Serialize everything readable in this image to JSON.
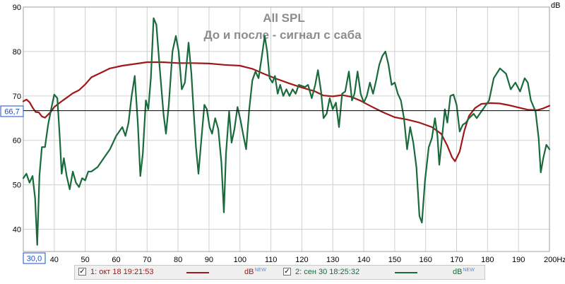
{
  "chart_data": {
    "type": "line",
    "title": "All SPL",
    "subtitle": "До и после - сигнал с саба",
    "ylabel": "dB",
    "xunit": "Hz",
    "xlim": [
      30,
      200
    ],
    "ylim": [
      35,
      90
    ],
    "x_ticks": [
      40,
      50,
      60,
      70,
      80,
      90,
      100,
      110,
      120,
      130,
      140,
      150,
      160,
      170,
      180,
      190,
      200
    ],
    "x_tick_labels": [
      "40",
      "50",
      "60",
      "70",
      "80",
      "90",
      "100",
      "110",
      "120",
      "130",
      "140",
      "150",
      "160",
      "170",
      "180",
      "190",
      "200Hz"
    ],
    "x_min_label": "30,0",
    "y_ticks": [
      40,
      50,
      60,
      70,
      80,
      90
    ],
    "reference_line": {
      "value": 66.7,
      "label": "66,7"
    },
    "grid": true,
    "colors": {
      "series1": "#a01818",
      "series2": "#196b3c",
      "reference": "#000000",
      "grid": "#d0d0d0"
    },
    "series": [
      {
        "name": "1: окт 18 19:21:53",
        "unit": "dB",
        "unit_tag": "NEW",
        "color": "#a01818",
        "points": [
          [
            30,
            68.8
          ],
          [
            31,
            69.2
          ],
          [
            32,
            68.6
          ],
          [
            33,
            67.4
          ],
          [
            34,
            66.4
          ],
          [
            35,
            66.3
          ],
          [
            36,
            65.4
          ],
          [
            37,
            65.1
          ],
          [
            38,
            65.8
          ],
          [
            39,
            66.5
          ],
          [
            40,
            67.5
          ],
          [
            42,
            68.6
          ],
          [
            44,
            69.6
          ],
          [
            46,
            70.6
          ],
          [
            48,
            71.3
          ],
          [
            50,
            72.6
          ],
          [
            52,
            74.2
          ],
          [
            55,
            75.2
          ],
          [
            58,
            76.2
          ],
          [
            62,
            76.8
          ],
          [
            66,
            77.2
          ],
          [
            70,
            77.6
          ],
          [
            75,
            77.6
          ],
          [
            80,
            77.4
          ],
          [
            85,
            77.4
          ],
          [
            90,
            77.3
          ],
          [
            95,
            77.0
          ],
          [
            100,
            76.8
          ],
          [
            104,
            76.1
          ],
          [
            108,
            74.9
          ],
          [
            112,
            73.8
          ],
          [
            116,
            72.8
          ],
          [
            120,
            71.9
          ],
          [
            124,
            71.1
          ],
          [
            127,
            70.1
          ],
          [
            130,
            69.9
          ],
          [
            133,
            70.2
          ],
          [
            136,
            69.8
          ],
          [
            139,
            68.9
          ],
          [
            142,
            67.8
          ],
          [
            146,
            66.4
          ],
          [
            150,
            65.2
          ],
          [
            154,
            64.7
          ],
          [
            158,
            64.0
          ],
          [
            162,
            63.0
          ],
          [
            165,
            61.5
          ],
          [
            167,
            58.8
          ],
          [
            168.5,
            56.2
          ],
          [
            169.5,
            55.3
          ],
          [
            171,
            57.5
          ],
          [
            172.5,
            62.2
          ],
          [
            174,
            65.5
          ],
          [
            176,
            67.3
          ],
          [
            178,
            68.2
          ],
          [
            181,
            68.4
          ],
          [
            184,
            68.3
          ],
          [
            187,
            67.9
          ],
          [
            190,
            67.4
          ],
          [
            193,
            66.9
          ],
          [
            196,
            66.8
          ],
          [
            198,
            67.2
          ],
          [
            200,
            67.8
          ]
        ]
      },
      {
        "name": "2: сен 30 18:25:32",
        "unit": "dB",
        "unit_tag": "NEW",
        "color": "#196b3c",
        "points": [
          [
            30,
            51.5
          ],
          [
            31,
            52.5
          ],
          [
            32,
            50.5
          ],
          [
            33,
            52
          ],
          [
            33.8,
            47
          ],
          [
            34.5,
            36.5
          ],
          [
            35.2,
            52
          ],
          [
            36,
            58.5
          ],
          [
            37,
            58.5
          ],
          [
            38,
            63.5
          ],
          [
            39,
            67
          ],
          [
            40,
            70.3
          ],
          [
            41,
            69.5
          ],
          [
            41.8,
            60.5
          ],
          [
            42.4,
            52.5
          ],
          [
            43.1,
            56
          ],
          [
            44,
            52
          ],
          [
            45,
            49
          ],
          [
            46,
            53
          ],
          [
            47,
            50.5
          ],
          [
            48,
            49.5
          ],
          [
            49,
            51.5
          ],
          [
            50,
            51
          ],
          [
            51,
            53
          ],
          [
            52,
            53
          ],
          [
            54,
            54
          ],
          [
            56,
            56
          ],
          [
            58,
            58
          ],
          [
            60,
            61
          ],
          [
            62,
            63
          ],
          [
            63,
            61
          ],
          [
            64,
            64
          ],
          [
            65,
            70
          ],
          [
            66,
            74.5
          ],
          [
            67,
            64
          ],
          [
            67.8,
            52
          ],
          [
            68.6,
            57
          ],
          [
            69.6,
            69
          ],
          [
            70.4,
            67
          ],
          [
            71.2,
            74
          ],
          [
            72.1,
            87.5
          ],
          [
            73,
            86
          ],
          [
            74,
            77
          ],
          [
            75.3,
            66
          ],
          [
            76.1,
            61.5
          ],
          [
            77,
            68
          ],
          [
            78.2,
            80
          ],
          [
            79.3,
            83.5
          ],
          [
            80.2,
            80
          ],
          [
            81.2,
            71.5
          ],
          [
            82.2,
            73
          ],
          [
            83.4,
            82
          ],
          [
            84.3,
            75
          ],
          [
            85,
            67
          ],
          [
            85.8,
            58.5
          ],
          [
            86.6,
            52.5
          ],
          [
            87.5,
            60
          ],
          [
            88.5,
            68
          ],
          [
            89.3,
            67
          ],
          [
            90.2,
            63
          ],
          [
            91,
            61.5
          ],
          [
            92,
            65
          ],
          [
            93,
            62.5
          ],
          [
            94,
            55
          ],
          [
            94.8,
            43.8
          ],
          [
            95.5,
            57
          ],
          [
            96.5,
            66.5
          ],
          [
            97.3,
            59.5
          ],
          [
            98.2,
            62.5
          ],
          [
            99.2,
            67.5
          ],
          [
            100.2,
            64.5
          ],
          [
            101,
            61.5
          ],
          [
            102,
            58
          ],
          [
            103,
            67
          ],
          [
            104,
            73.5
          ],
          [
            105,
            75.5
          ],
          [
            106,
            74
          ],
          [
            107,
            78.5
          ],
          [
            108,
            83.5
          ],
          [
            108.8,
            80
          ],
          [
            109.6,
            74
          ],
          [
            110.5,
            73
          ],
          [
            111.3,
            74.5
          ],
          [
            112.2,
            70.5
          ],
          [
            113,
            72.5
          ],
          [
            114,
            70
          ],
          [
            115,
            71.5
          ],
          [
            116,
            70
          ],
          [
            117,
            71.5
          ],
          [
            118,
            70.5
          ],
          [
            119,
            72.5
          ],
          [
            121,
            72
          ],
          [
            122,
            72.5
          ],
          [
            123.2,
            69.5
          ],
          [
            124.3,
            72.5
          ],
          [
            125.2,
            75.8
          ],
          [
            126.2,
            71
          ],
          [
            127,
            65
          ],
          [
            128,
            66
          ],
          [
            129,
            69.5
          ],
          [
            130,
            67
          ],
          [
            131,
            68.5
          ],
          [
            132,
            63
          ],
          [
            133,
            70.5
          ],
          [
            134,
            71
          ],
          [
            135.2,
            75.5
          ],
          [
            136.2,
            69
          ],
          [
            137,
            70.5
          ],
          [
            138,
            75.5
          ],
          [
            139,
            70.5
          ],
          [
            140,
            68.5
          ],
          [
            141,
            70
          ],
          [
            142,
            73
          ],
          [
            143,
            70.5
          ],
          [
            144,
            73.5
          ],
          [
            145,
            77
          ],
          [
            146,
            79
          ],
          [
            147,
            80
          ],
          [
            148,
            77
          ],
          [
            149,
            72.5
          ],
          [
            150,
            73
          ],
          [
            151,
            70.5
          ],
          [
            152,
            69
          ],
          [
            153,
            65
          ],
          [
            154,
            58
          ],
          [
            155,
            63
          ],
          [
            156,
            59.5
          ],
          [
            157,
            54
          ],
          [
            158,
            43
          ],
          [
            158.8,
            41.5
          ],
          [
            159.8,
            51
          ],
          [
            161,
            58.5
          ],
          [
            162,
            60.5
          ],
          [
            163,
            65
          ],
          [
            163.8,
            61
          ],
          [
            164.4,
            54.5
          ],
          [
            165.2,
            60
          ],
          [
            166.2,
            67
          ],
          [
            167,
            64
          ],
          [
            168,
            70
          ],
          [
            169,
            70.3
          ],
          [
            170,
            68
          ],
          [
            171,
            62
          ],
          [
            172,
            63.5
          ],
          [
            173,
            64
          ],
          [
            174,
            65
          ],
          [
            175.5,
            66
          ],
          [
            176.5,
            65
          ],
          [
            178,
            66.5
          ],
          [
            179.5,
            68
          ],
          [
            180.5,
            69
          ],
          [
            182,
            74
          ],
          [
            184,
            76.2
          ],
          [
            186,
            75
          ],
          [
            187.5,
            71.5
          ],
          [
            189,
            73
          ],
          [
            190.5,
            71
          ],
          [
            192,
            74
          ],
          [
            193,
            73
          ],
          [
            194,
            69
          ],
          [
            195.5,
            66.5
          ],
          [
            196.5,
            60.5
          ],
          [
            197.2,
            52.8
          ],
          [
            198,
            56
          ],
          [
            199,
            59
          ],
          [
            200,
            58
          ]
        ]
      }
    ]
  },
  "legend": {
    "items": [
      {
        "checkbox": "✓",
        "label": "1: окт 18 19:21:53",
        "unit": "dB",
        "unit_tag": "NEW",
        "color": "#a01818"
      },
      {
        "checkbox": "✓",
        "label": "2: сен 30 18:25:32",
        "unit": "dB",
        "unit_tag": "NEW",
        "color": "#196b3c"
      }
    ]
  }
}
